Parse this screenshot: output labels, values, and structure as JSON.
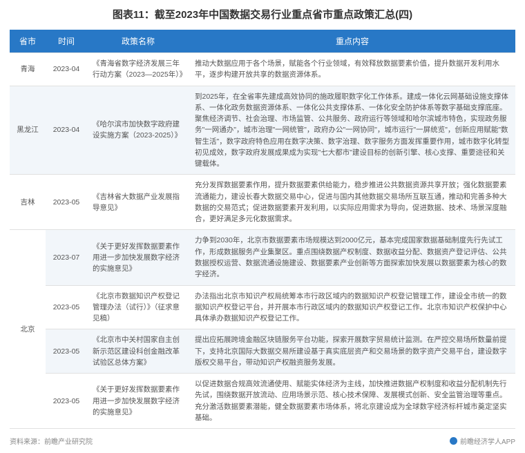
{
  "title": "图表11：截至2023年中国数据交易行业重点省市重点政策汇总(四)",
  "columns": [
    "省市",
    "时间",
    "政策名称",
    "重点内容"
  ],
  "rows": [
    {
      "province": "青海",
      "time": "2023-04",
      "policy": "《青海省数字经济发展三年行动方案（2023—2025年）》",
      "content": "推动大数据应用于各个场景，赋能各个行业领域，有效释放数据要素价值，提升数据开发利用水平，逐步构建开放共享的数据资源体系。",
      "rowspan_province": 1
    },
    {
      "province": "黑龙江",
      "time": "2023-04",
      "policy": "《哈尔滨市加快数字政府建设实施方案（2023-2025）》",
      "content": "到2025年，在全省率先建成高效协同的施政履职数字化工作体系。建成一体化云网基础设施支撑体系、一体化政务数据资源体系、一体化公共支撑体系、一体化安全防护体系等数字基础支撑底座。聚焦经济调节、社会治理、市场监管、公共服务、政府运行等领域和哈尔滨城市特色，实现政务服务\"一网通办\"，城市治理\"一网统管\"，政府办公\"一网协同\"，城市运行\"一屏统览\"，创新应用赋能\"数智生活\"，数字政府特色应用在数字决策、数字治理、数字服务方面发挥重要作用，城市数字化转型初见成效，数字政府发展成果成为实现\"七大都市\"建设目标的创新引擎、核心支撑、重要途径和关键载体。",
      "rowspan_province": 1
    },
    {
      "province": "吉林",
      "time": "2023-05",
      "policy": "《吉林省大数据产业发展指导意见》",
      "content": "充分发挥数据要素作用，提升数据要素供给能力，稳步推进公共数据资源共享开放；强化数据要素流通能力，建设长春大数据交易中心，促进与国内其他数据交易场所互联互通，推动和完善多种大数据的交易范式；促进数据要素开发利用，以实际应用需求为导向，促进数据、技术、场景深度融合，更好满足多元化数据需求。",
      "rowspan_province": 1
    },
    {
      "province": "北京",
      "time": "2023-07",
      "policy": "《关于更好发挥数据要素作用进一步加快发展数字经济的实施意见》",
      "content": "力争到2030年，北京市数据要素市场规模达到2000亿元，基本完成国家数据基础制度先行先试工作，形成数据服务产业集聚区。重点围绕数据产权制度、数据收益分配、数据资产登记评估、公共数据授权运营、数据流通设施建设、数据要素产业创新等方面探索加快发展以数据要素为核心的数字经济。",
      "rowspan_province": 4
    },
    {
      "province": "",
      "time": "2023-05",
      "policy": "《北京市数据知识产权登记管理办法（试行）》（征求意见稿）",
      "content": "办法指出北京市知识产权局统筹本市行政区域内的数据知识产权登记管理工作，建设全市统一的数据知识产权登记平台，并开展本市行政区域内的数据知识产权登记工作。北京市知识产权保护中心具体承办数据知识产权登记工作。",
      "rowspan_province": 0
    },
    {
      "province": "",
      "time": "2023-05",
      "policy": "《北京市中关村国家自主创新示范区建设科创金融改革试验区总体方案》",
      "content": "提出应拓展跨境金融区块链服务平台功能，探索开展数字贸易统计监测。在严控交易场所数量前提下，支持北京国际大数据交易所建设基于真实底层资产和交易场景的数字资产交易平台，建设数字版权交易平台，带动知识产权融资服务发展。",
      "rowspan_province": 0
    },
    {
      "province": "",
      "time": "2023-05",
      "policy": "《关于更好发挥数据要素作用进一步加快发展数字经济的实施意见》",
      "content": "以促进数据合规高效流通使用、赋能实体经济为主线，加快推进数据产权制度和收益分配机制先行先试，围绕数据开放流动、应用场景示范、核心技术保障、发展模式创新、安全监管治理等重点。充分激活数据要素潜能，健全数据要素市场体系，将北京建设成为全球数字经济标杆城市奠定坚实基础。",
      "rowspan_province": 0
    }
  ],
  "footer_left": "资料来源：前瞻产业研究院",
  "footer_right": "前瞻经济学人APP",
  "colors": {
    "header_bg": "#2878c6",
    "header_text": "#ffffff",
    "row_even_bg": "#f2f6fa",
    "row_odd_bg": "#ffffff",
    "text": "#555555",
    "border": "#e0e0e0"
  }
}
